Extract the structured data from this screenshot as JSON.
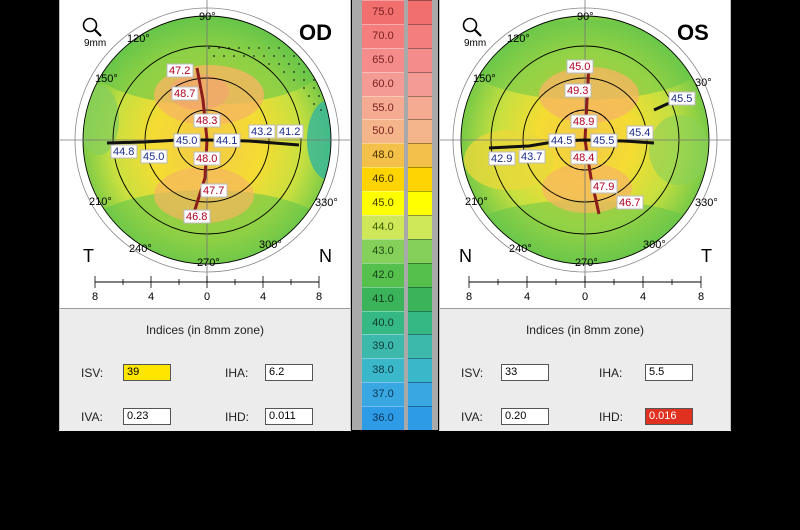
{
  "od": {
    "eye": "OD",
    "zoom": "9mm",
    "left_letter": "T",
    "right_letter": "N",
    "angles": {
      "a90": "90°",
      "a120": "120°",
      "a150": "150°",
      "a210": "210°",
      "a240": "240°",
      "a270": "270°",
      "a300": "300°",
      "a330": "330°"
    },
    "axis_ticks": [
      "8",
      "4",
      "0",
      "4",
      "8"
    ],
    "values_red": {
      "v1": "47.2",
      "v2": "48.7",
      "v3": "48.3",
      "v4": "48.0",
      "v5": "47.7",
      "v6": "46.8"
    },
    "values_blue": {
      "v1": "44.8",
      "v2": "45.0",
      "v3": "45.0",
      "v4": "44.1",
      "v5": "43.2",
      "v6": "41.2"
    },
    "indices": {
      "title": "Indices (in 8mm zone)",
      "isv_label": "ISV:",
      "isv": "39",
      "iha_label": "IHA:",
      "iha": "6.2",
      "iva_label": "IVA:",
      "iva": "0.23",
      "ihd_label": "IHD:",
      "ihd": "0.011"
    }
  },
  "os": {
    "eye": "OS",
    "zoom": "9mm",
    "left_letter": "N",
    "right_letter": "T",
    "angles": {
      "a90": "90°",
      "a120": "120°",
      "a150": "150°",
      "a30": "30°",
      "a210": "210°",
      "a240": "240°",
      "a270": "270°",
      "a300": "300°",
      "a330": "330°"
    },
    "axis_ticks": [
      "8",
      "4",
      "0",
      "4",
      "8"
    ],
    "values_red": {
      "v1": "45.0",
      "v2": "49.3",
      "v3": "48.9",
      "v4": "48.4",
      "v5": "47.9",
      "v6": "46.7"
    },
    "values_blue": {
      "v1": "45.5",
      "v2": "42.9",
      "v3": "43.7",
      "v4": "44.5",
      "v5": "45.5",
      "v6": "45.4"
    },
    "indices": {
      "title": "Indices (in 8mm zone)",
      "isv_label": "ISV:",
      "isv": "33",
      "iha_label": "IHA:",
      "iha": "5.5",
      "iva_label": "IVA:",
      "iva": "0.20",
      "ihd_label": "IHD:",
      "ihd": "0.016"
    }
  },
  "scale": {
    "labels": [
      "75.0",
      "70.0",
      "65.0",
      "60.0",
      "55.0",
      "50.0",
      "48.0",
      "46.0",
      "45.0",
      "44.0",
      "43.0",
      "42.0",
      "41.0",
      "40.0",
      "39.0",
      "38.0",
      "37.0",
      "36.0"
    ],
    "colors": [
      "#f26f6f",
      "#f47e7e",
      "#f58c8c",
      "#f49b95",
      "#f5ab92",
      "#f5b58a",
      "#f3c04a",
      "#ffd400",
      "#ffff00",
      "#cfe85a",
      "#85d05a",
      "#55c04b",
      "#3ab35a",
      "#35b884",
      "#3db9ac",
      "#3ab7c8",
      "#38a7e2",
      "#2d9be6"
    ],
    "text_colors": [
      "#7a2020",
      "#7a2020",
      "#7a2020",
      "#7a2020",
      "#7a2020",
      "#7a2020",
      "#4a3000",
      "#3a3000",
      "#3a3a00",
      "#3c5a00",
      "#1e4a10",
      "#16401a",
      "#123a1a",
      "#0f3a2a",
      "#0f3b38",
      "#0d3a46",
      "#0c3652",
      "#0c3456"
    ]
  },
  "colors": {
    "isv_od_highlight": "#ffe600",
    "ihd_os_highlight": "#e03020"
  }
}
